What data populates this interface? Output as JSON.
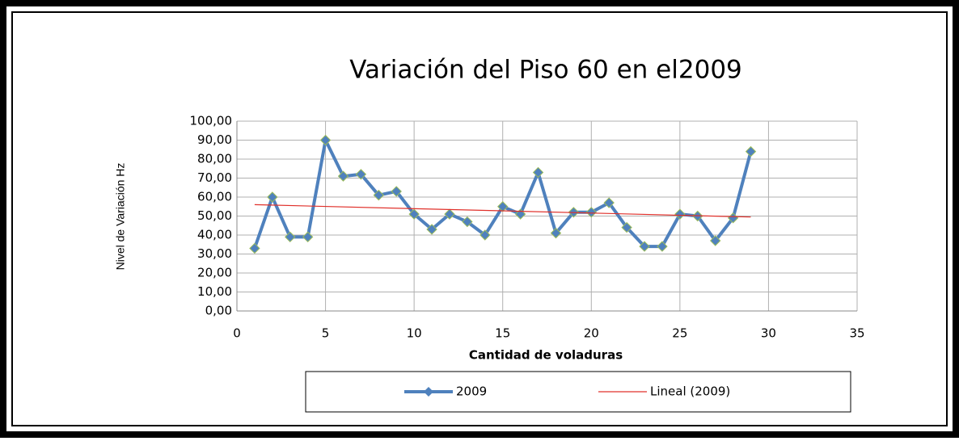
{
  "chart_data": {
    "type": "line",
    "title": "Variación del Piso 60 en el2009",
    "x_label": "Cantidad de voladuras",
    "y_label": "Nivel de Variación Hz",
    "xlim": [
      0,
      35
    ],
    "xticks": [
      0,
      5,
      10,
      15,
      20,
      25,
      30,
      35
    ],
    "ylim": [
      0,
      100
    ],
    "yticks": [
      {
        "value": 0,
        "label": "0,00"
      },
      {
        "value": 10,
        "label": "10,00"
      },
      {
        "value": 20,
        "label": "20,00"
      },
      {
        "value": 30,
        "label": "30,00"
      },
      {
        "value": 40,
        "label": "40,00"
      },
      {
        "value": 50,
        "label": "50,00"
      },
      {
        "value": 60,
        "label": "60,00"
      },
      {
        "value": 70,
        "label": "70,00"
      },
      {
        "value": 80,
        "label": "80,00"
      },
      {
        "value": 90,
        "label": "90,00"
      },
      {
        "value": 100,
        "label": "100,00"
      }
    ],
    "grid": true,
    "legend": "bottom",
    "series": [
      {
        "name": "2009",
        "color": "#4f81bd",
        "marker": true,
        "x": [
          1,
          2,
          3,
          4,
          5,
          6,
          7,
          8,
          9,
          10,
          11,
          12,
          13,
          14,
          15,
          16,
          17,
          18,
          19,
          20,
          21,
          22,
          23,
          24,
          25,
          26,
          27,
          28,
          29
        ],
        "values": [
          33,
          60,
          39,
          39,
          90,
          71,
          72,
          61,
          63,
          51,
          43,
          51,
          47,
          40,
          55,
          51,
          73,
          41,
          52,
          52,
          57,
          44,
          34,
          34,
          51,
          50,
          37,
          49,
          84
        ]
      },
      {
        "name": "Lineal (2009)",
        "color": "#e0302a",
        "marker": false,
        "x": [
          1,
          29
        ],
        "values": [
          56,
          49.5
        ]
      }
    ]
  }
}
